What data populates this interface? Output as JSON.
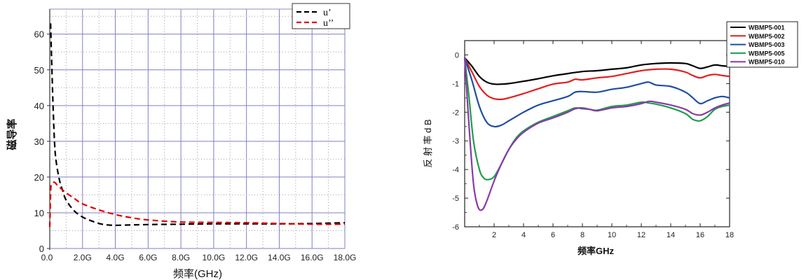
{
  "chart_data": [
    {
      "type": "line",
      "title": "",
      "xlabel": "频率(GHz)",
      "ylabel": "磁导率",
      "xlim": [
        0,
        18
      ],
      "ylim": [
        0,
        67
      ],
      "grid": true,
      "legend_position": "top-right",
      "x_ticks": [
        "0.0",
        "2.0G",
        "4.0G",
        "6.0G",
        "8.0G",
        "10.0G",
        "12.0G",
        "14.0G",
        "16.0G",
        "18.0G"
      ],
      "y_ticks": [
        "0",
        "10",
        "20",
        "30",
        "40",
        "50",
        "60"
      ],
      "series": [
        {
          "name": "u’",
          "color": "#000000",
          "x": [
            0.05,
            0.1,
            0.2,
            0.3,
            0.4,
            0.6,
            0.8,
            1.0,
            1.5,
            2.0,
            2.5,
            3.0,
            3.5,
            4.0,
            5.0,
            6.0,
            8.0,
            10.0,
            12.0,
            14.0,
            16.0,
            18.0
          ],
          "y": [
            63,
            55,
            40,
            29,
            24,
            19,
            16,
            13.5,
            10.5,
            8.8,
            7.8,
            7.0,
            6.6,
            6.5,
            6.6,
            6.7,
            6.8,
            6.9,
            6.9,
            6.9,
            7.0,
            7.2
          ]
        },
        {
          "name": "u’’",
          "color": "#e00000",
          "x": [
            0.0,
            0.05,
            0.1,
            0.3,
            0.5,
            1.0,
            1.5,
            2.0,
            3.0,
            4.0,
            5.0,
            6.0,
            8.0,
            10.0,
            12.0,
            14.0,
            16.0,
            18.0
          ],
          "y": [
            6,
            15,
            18,
            18.5,
            17.5,
            15.6,
            14,
            12.5,
            10.8,
            9.5,
            8.6,
            8.0,
            7.4,
            7.3,
            7.2,
            7.0,
            6.8,
            6.8
          ]
        }
      ]
    },
    {
      "type": "line",
      "title": "",
      "xlabel": "频率GHz",
      "ylabel": "反 射 率  d B",
      "xlim": [
        0,
        18
      ],
      "ylim": [
        -6,
        0.5
      ],
      "grid": false,
      "legend_position": "top-right",
      "x_ticks": [
        "2",
        "4",
        "6",
        "8",
        "10",
        "12",
        "14",
        "16",
        "18"
      ],
      "y_ticks": [
        "0",
        "-1",
        "-2",
        "-3",
        "-4",
        "-5",
        "-6"
      ],
      "series": [
        {
          "name": "WBMP5-001",
          "color": "#000000",
          "x": [
            0,
            0.5,
            1,
            1.5,
            2,
            2.5,
            3,
            4,
            5,
            6,
            7,
            8,
            9,
            10,
            11,
            12,
            13,
            14,
            15,
            15.5,
            16,
            16.5,
            17,
            17.5,
            18
          ],
          "y": [
            -0.1,
            -0.4,
            -0.75,
            -0.95,
            -1.02,
            -1.02,
            -1.0,
            -0.92,
            -0.83,
            -0.73,
            -0.65,
            -0.58,
            -0.55,
            -0.5,
            -0.45,
            -0.35,
            -0.3,
            -0.28,
            -0.3,
            -0.38,
            -0.47,
            -0.42,
            -0.35,
            -0.38,
            -0.4
          ]
        },
        {
          "name": "WBMP5-002",
          "color": "#e02020",
          "x": [
            0,
            0.5,
            1,
            1.5,
            2,
            2.5,
            3,
            4,
            5,
            6,
            7,
            7.5,
            8,
            9,
            10,
            11,
            12,
            13,
            14,
            15,
            15.5,
            16,
            16.5,
            17,
            17.5,
            18
          ],
          "y": [
            -0.1,
            -0.6,
            -1.1,
            -1.4,
            -1.53,
            -1.55,
            -1.5,
            -1.35,
            -1.18,
            -1.02,
            -0.95,
            -0.85,
            -0.87,
            -0.8,
            -0.75,
            -0.65,
            -0.55,
            -0.5,
            -0.5,
            -0.6,
            -0.72,
            -0.8,
            -0.72,
            -0.68,
            -0.72,
            -0.75
          ]
        },
        {
          "name": "WBMP5-003",
          "color": "#1f4ea0",
          "x": [
            0,
            0.5,
            1,
            1.5,
            2,
            2.5,
            3,
            4,
            5,
            6,
            7,
            7.5,
            8,
            9,
            10,
            11,
            12,
            12.5,
            13,
            14,
            15,
            15.5,
            16,
            16.5,
            17,
            17.5,
            18
          ],
          "y": [
            -0.1,
            -0.9,
            -1.8,
            -2.35,
            -2.5,
            -2.45,
            -2.3,
            -2.0,
            -1.75,
            -1.6,
            -1.45,
            -1.3,
            -1.28,
            -1.3,
            -1.2,
            -1.13,
            -1.0,
            -0.95,
            -1.05,
            -1.1,
            -1.3,
            -1.5,
            -1.7,
            -1.6,
            -1.5,
            -1.45,
            -1.5
          ]
        },
        {
          "name": "WBMP5-005",
          "color": "#1e9e4a",
          "x": [
            0,
            0.3,
            0.6,
            1,
            1.3,
            1.6,
            2,
            2.5,
            3,
            3.5,
            4,
            5,
            6,
            7,
            7.5,
            8,
            8.5,
            9,
            10,
            11,
            12,
            12.5,
            13,
            14,
            15,
            15.5,
            16,
            16.5,
            17,
            17.5,
            18
          ],
          "y": [
            -0.1,
            -1.5,
            -3.0,
            -4.0,
            -4.3,
            -4.35,
            -4.25,
            -3.8,
            -3.3,
            -2.9,
            -2.65,
            -2.35,
            -2.15,
            -1.95,
            -1.85,
            -1.88,
            -1.9,
            -1.93,
            -1.8,
            -1.75,
            -1.65,
            -1.68,
            -1.72,
            -1.85,
            -2.05,
            -2.25,
            -2.3,
            -2.15,
            -1.9,
            -1.8,
            -1.75
          ]
        },
        {
          "name": "WBMP5-010",
          "color": "#8a3aa8",
          "x": [
            0,
            0.3,
            0.6,
            0.9,
            1.2,
            1.5,
            2,
            2.5,
            3,
            3.5,
            4,
            5,
            6,
            7,
            7.5,
            8,
            8.5,
            9,
            10,
            11,
            12,
            12.5,
            13,
            14,
            15,
            15.5,
            16,
            16.5,
            17,
            17.5,
            18
          ],
          "y": [
            -0.1,
            -2.5,
            -4.5,
            -5.3,
            -5.4,
            -5.1,
            -4.4,
            -3.8,
            -3.3,
            -2.95,
            -2.7,
            -2.38,
            -2.2,
            -2.0,
            -1.88,
            -1.85,
            -1.9,
            -1.95,
            -1.85,
            -1.8,
            -1.7,
            -1.62,
            -1.65,
            -1.75,
            -1.9,
            -2.05,
            -2.1,
            -2.0,
            -1.85,
            -1.75,
            -1.68
          ]
        }
      ]
    }
  ]
}
